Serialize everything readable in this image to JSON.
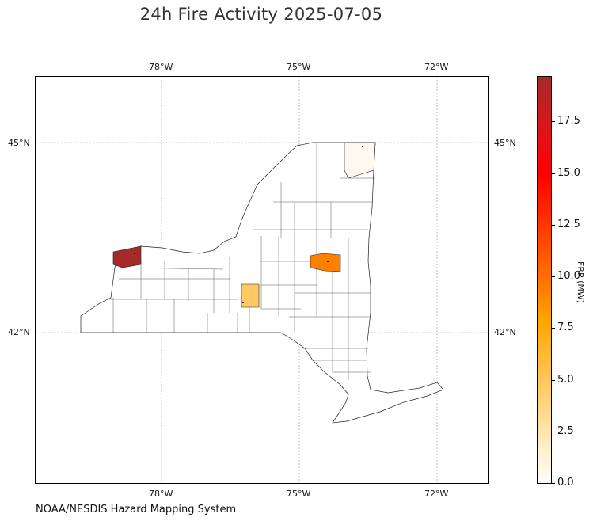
{
  "title": "24h Fire Activity 2025-07-05",
  "credit": "NOAA/NESDIS Hazard Mapping System",
  "map": {
    "graticule": {
      "top_lon_labels": [
        "78°W",
        "75°W",
        "72°W"
      ],
      "bottom_lon_labels": [
        "78°W",
        "75°W",
        "72°W"
      ],
      "left_lat_labels": [
        "45°N",
        "42°N"
      ],
      "right_lat_labels": [
        "45°N",
        "42°N"
      ]
    },
    "highlighted_counties": [
      {
        "frp_mw": 19.5,
        "color": "#a52a2a"
      },
      {
        "frp_mw": 4.3,
        "color": "#ffca66"
      },
      {
        "frp_mw": 8.6,
        "color": "#ff7f00"
      },
      {
        "frp_mw": 0.3,
        "color": "#fff8ee"
      }
    ]
  },
  "colorbar": {
    "label": "FRP (MW)",
    "min": 0.0,
    "max": 19.7,
    "ticks": [
      "0.0",
      "2.5",
      "5.0",
      "7.5",
      "10.0",
      "12.5",
      "15.0",
      "17.5"
    ]
  }
}
